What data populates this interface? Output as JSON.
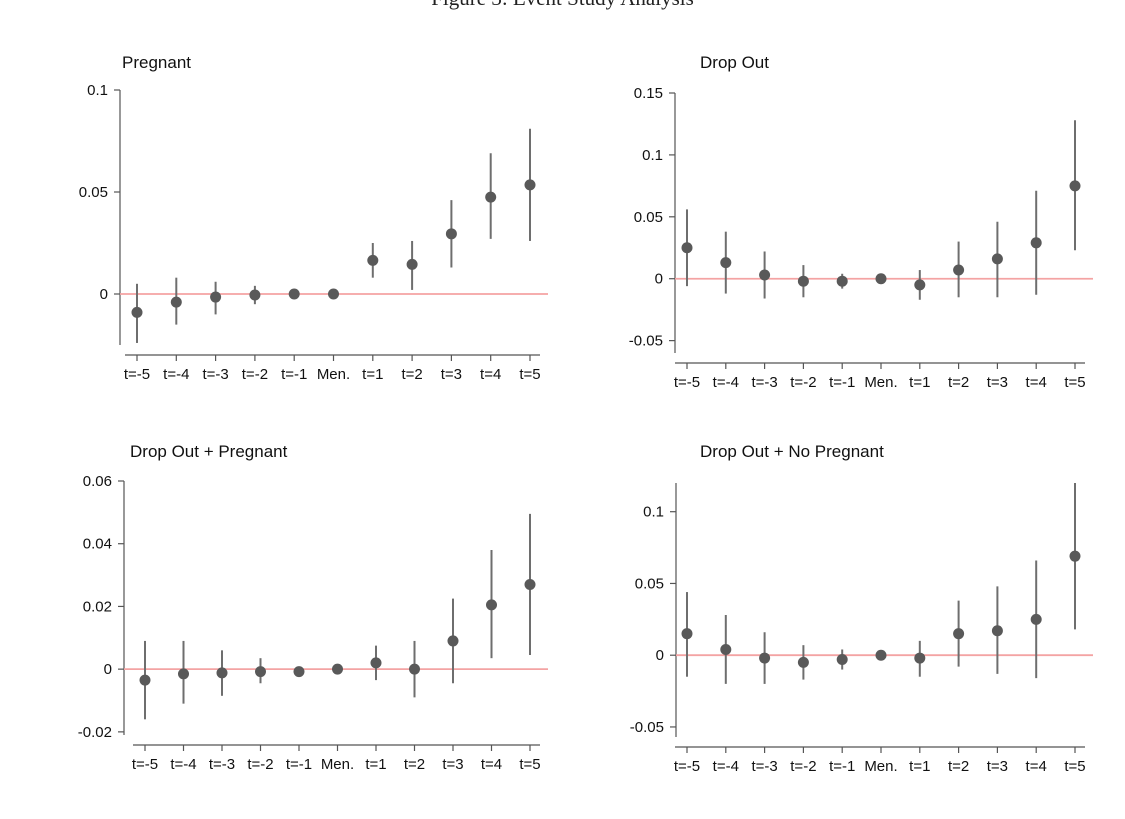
{
  "figure": {
    "caption": "Figure 3: Event Study Analysis"
  },
  "colors": {
    "marker": "#595959",
    "interval": "#6e6e6e",
    "reference_line": "#f4a3a3",
    "axis": "#555555"
  },
  "chart_data": [
    {
      "type": "scatter",
      "title": "Pregnant",
      "xlabel": "",
      "ylabel": "",
      "categories": [
        "t=-5",
        "t=-4",
        "t=-3",
        "t=-2",
        "t=-1",
        "Men.",
        "t=1",
        "t=2",
        "t=3",
        "t=4",
        "t=5"
      ],
      "estimates": [
        -0.009,
        -0.004,
        -0.0015,
        -0.0005,
        0.0,
        0.0,
        0.0165,
        0.0145,
        0.0295,
        0.0475,
        0.0535
      ],
      "ci_lower": [
        -0.024,
        -0.015,
        -0.01,
        -0.005,
        0.0,
        0.0,
        0.008,
        0.002,
        0.013,
        0.027,
        0.026
      ],
      "ci_upper": [
        0.005,
        0.008,
        0.006,
        0.004,
        0.0,
        0.0,
        0.025,
        0.026,
        0.046,
        0.069,
        0.081
      ],
      "yticks": [
        0,
        0.05,
        0.1
      ],
      "ytick_labels": [
        "0",
        "0.05",
        "0.1"
      ],
      "ylim": [
        -0.025,
        0.1
      ],
      "reference_line": 0,
      "grid": false
    },
    {
      "type": "scatter",
      "title": "Drop Out",
      "xlabel": "",
      "ylabel": "",
      "categories": [
        "t=-5",
        "t=-4",
        "t=-3",
        "t=-2",
        "t=-1",
        "Men.",
        "t=1",
        "t=2",
        "t=3",
        "t=4",
        "t=5"
      ],
      "estimates": [
        0.025,
        0.013,
        0.003,
        -0.002,
        -0.002,
        0.0,
        -0.005,
        0.007,
        0.016,
        0.029,
        0.075
      ],
      "ci_lower": [
        -0.006,
        -0.012,
        -0.016,
        -0.015,
        -0.008,
        0.0,
        -0.017,
        -0.015,
        -0.015,
        -0.013,
        0.023
      ],
      "ci_upper": [
        0.056,
        0.038,
        0.022,
        0.011,
        0.004,
        0.0,
        0.007,
        0.03,
        0.046,
        0.071,
        0.128
      ],
      "yticks": [
        -0.05,
        0,
        0.05,
        0.1,
        0.15
      ],
      "ytick_labels": [
        "-0.05",
        "0",
        "0.05",
        "0.1",
        "0.15"
      ],
      "ylim": [
        -0.06,
        0.15
      ],
      "reference_line": 0,
      "grid": false
    },
    {
      "type": "scatter",
      "title": "Drop Out + Pregnant",
      "xlabel": "",
      "ylabel": "",
      "categories": [
        "t=-5",
        "t=-4",
        "t=-3",
        "t=-2",
        "t=-1",
        "Men.",
        "t=1",
        "t=2",
        "t=3",
        "t=4",
        "t=5"
      ],
      "estimates": [
        -0.0035,
        -0.0015,
        -0.0012,
        -0.0008,
        -0.0008,
        0.0,
        0.002,
        0.0,
        0.009,
        0.0205,
        0.027
      ],
      "ci_lower": [
        -0.016,
        -0.011,
        -0.0085,
        -0.0045,
        -0.0015,
        0.0,
        -0.0035,
        -0.009,
        -0.0045,
        0.0035,
        0.0045
      ],
      "ci_upper": [
        0.009,
        0.009,
        0.006,
        0.0035,
        0.0,
        0.0,
        0.0075,
        0.009,
        0.0225,
        0.038,
        0.0495
      ],
      "yticks": [
        -0.02,
        0,
        0.02,
        0.04,
        0.06
      ],
      "ytick_labels": [
        "-0.02",
        "0",
        "0.02",
        "0.04",
        "0.06"
      ],
      "ylim": [
        -0.021,
        0.06
      ],
      "reference_line": 0,
      "grid": false
    },
    {
      "type": "scatter",
      "title": "Drop Out + No Pregnant",
      "xlabel": "",
      "ylabel": "",
      "categories": [
        "t=-5",
        "t=-4",
        "t=-3",
        "t=-2",
        "t=-1",
        "Men.",
        "t=1",
        "t=2",
        "t=3",
        "t=4",
        "t=5"
      ],
      "estimates": [
        0.015,
        0.004,
        -0.002,
        -0.005,
        -0.003,
        0.0,
        -0.002,
        0.015,
        0.017,
        0.025,
        0.069
      ],
      "ci_lower": [
        -0.015,
        -0.02,
        -0.02,
        -0.017,
        -0.01,
        0.0,
        -0.015,
        -0.008,
        -0.013,
        -0.016,
        0.018
      ],
      "ci_upper": [
        0.044,
        0.028,
        0.016,
        0.007,
        0.004,
        0.0,
        0.01,
        0.038,
        0.048,
        0.066,
        0.12
      ],
      "yticks": [
        -0.05,
        0,
        0.05,
        0.1
      ],
      "ytick_labels": [
        "-0.05",
        "0",
        "0.05",
        "0.1"
      ],
      "ylim": [
        -0.057,
        0.12
      ],
      "reference_line": 0,
      "grid": false
    }
  ]
}
